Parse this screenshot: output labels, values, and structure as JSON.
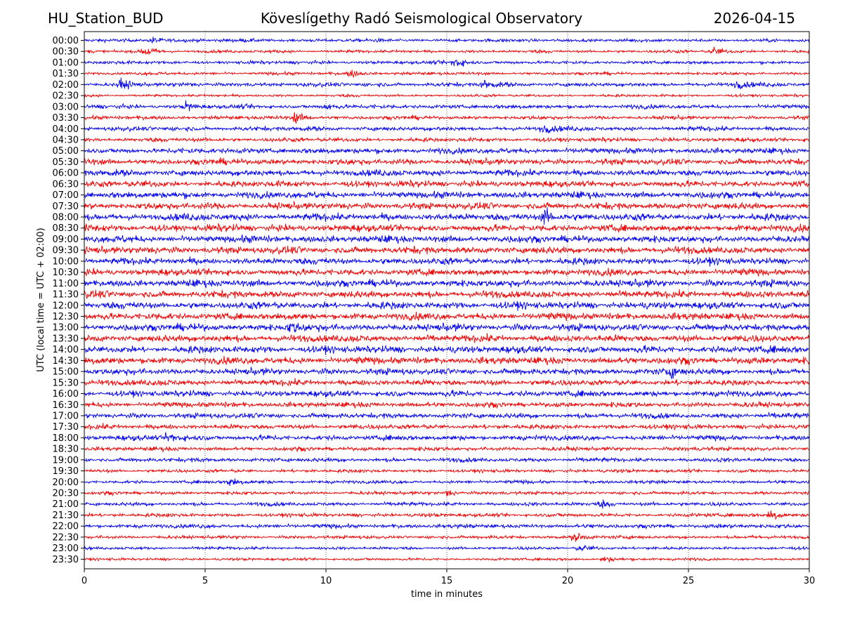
{
  "header": {
    "station": "HU_Station_BUD",
    "title": "Köveslígethy Radó Seismological Observatory",
    "date": "2026-04-15"
  },
  "chart_data": {
    "type": "helicorder",
    "title": "Köveslígethy Radó Seismological Observatory",
    "station": "HU_Station_BUD",
    "date": "2026-04-15",
    "xlabel": "time in minutes",
    "ylabel": "UTC (local time = UTC + 02:00)",
    "xlim": [
      0,
      30
    ],
    "xticks": [
      0,
      5,
      10,
      15,
      20,
      25,
      30
    ],
    "grid": "vertical dotted",
    "colors": [
      "#0000ee",
      "#ee0000"
    ],
    "rows": [
      "00:00",
      "00:30",
      "01:00",
      "01:30",
      "02:00",
      "02:30",
      "03:00",
      "03:30",
      "04:00",
      "04:30",
      "05:00",
      "05:30",
      "06:00",
      "06:30",
      "07:00",
      "07:30",
      "08:00",
      "08:30",
      "09:00",
      "09:30",
      "10:00",
      "10:30",
      "11:00",
      "11:30",
      "12:00",
      "12:30",
      "13:00",
      "13:30",
      "14:00",
      "14:30",
      "15:00",
      "15:30",
      "16:00",
      "16:30",
      "17:00",
      "17:30",
      "18:00",
      "18:30",
      "19:00",
      "19:30",
      "20:00",
      "20:30",
      "21:00",
      "21:30",
      "22:00",
      "22:30",
      "23:00",
      "23:30"
    ],
    "noise_level": [
      0.45,
      0.4,
      0.45,
      0.4,
      0.55,
      0.35,
      0.55,
      0.5,
      0.6,
      0.55,
      0.75,
      0.8,
      0.85,
      0.85,
      0.9,
      0.9,
      0.95,
      0.95,
      0.95,
      0.95,
      0.9,
      0.9,
      0.95,
      0.95,
      0.95,
      0.95,
      0.95,
      0.95,
      0.95,
      0.95,
      0.85,
      0.8,
      0.8,
      0.7,
      0.7,
      0.65,
      0.7,
      0.55,
      0.55,
      0.45,
      0.45,
      0.45,
      0.5,
      0.5,
      0.55,
      0.45,
      0.4,
      0.35
    ],
    "events": [
      {
        "row": "00:00",
        "minute": 2.8,
        "amplitude": 0.8
      },
      {
        "row": "00:30",
        "minute": 2.5,
        "amplitude": 1.4
      },
      {
        "row": "00:30",
        "minute": 26.0,
        "amplitude": 1.0
      },
      {
        "row": "01:00",
        "minute": 15.3,
        "amplitude": 1.5
      },
      {
        "row": "01:30",
        "minute": 11.0,
        "amplitude": 0.9
      },
      {
        "row": "02:00",
        "minute": 1.5,
        "amplitude": 1.3
      },
      {
        "row": "02:00",
        "minute": 16.5,
        "amplitude": 1.1
      },
      {
        "row": "02:00",
        "minute": 27.0,
        "amplitude": 0.9
      },
      {
        "row": "03:00",
        "minute": 4.2,
        "amplitude": 1.0
      },
      {
        "row": "03:00",
        "minute": 10.0,
        "amplitude": 0.9
      },
      {
        "row": "03:30",
        "minute": 8.7,
        "amplitude": 1.3
      },
      {
        "row": "04:00",
        "minute": 19.0,
        "amplitude": 1.0
      },
      {
        "row": "08:00",
        "minute": 19.0,
        "amplitude": 2.0
      },
      {
        "row": "13:00",
        "minute": 8.5,
        "amplitude": 1.2
      },
      {
        "row": "15:00",
        "minute": 24.2,
        "amplitude": 1.2
      },
      {
        "row": "18:00",
        "minute": 3.5,
        "amplitude": 1.5
      },
      {
        "row": "20:00",
        "minute": 6.0,
        "amplitude": 1.2
      },
      {
        "row": "20:30",
        "minute": 15.0,
        "amplitude": 0.9
      },
      {
        "row": "21:00",
        "minute": 21.4,
        "amplitude": 0.9
      },
      {
        "row": "21:30",
        "minute": 28.4,
        "amplitude": 1.6
      },
      {
        "row": "22:30",
        "minute": 20.3,
        "amplitude": 1.2
      },
      {
        "row": "23:00",
        "minute": 20.5,
        "amplitude": 0.8
      },
      {
        "row": "23:30",
        "minute": 21.5,
        "amplitude": 0.7
      }
    ]
  }
}
